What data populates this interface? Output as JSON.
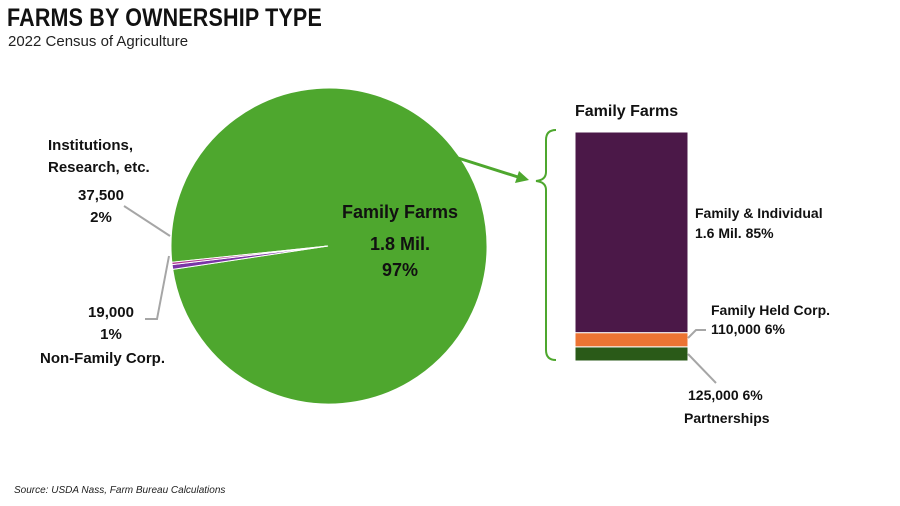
{
  "title": "FARMS BY OWNERSHIP TYPE",
  "subtitle": "2022 Census of Agriculture",
  "source": "Source: USDA Nass, Farm Bureau Calculations",
  "chart_data": [
    {
      "type": "pie",
      "slices": [
        {
          "name": "Family Farms",
          "value_label": "1.8 Mil.",
          "percent_label": "97%",
          "percent": 97,
          "color": "#4ea72e"
        },
        {
          "name_lines": [
            "Institutions,",
            "Research, etc."
          ],
          "value_label": "37,500",
          "percent_label": "2%",
          "percent": 2,
          "color": "#7a35a6"
        },
        {
          "name_lines": [
            "Non-Family Corp."
          ],
          "value_label": "19,000",
          "percent_label": "1%",
          "percent": 1,
          "color": "#b0338e"
        }
      ]
    },
    {
      "type": "bar",
      "stacked": true,
      "title": "Family Farms",
      "segments": [
        {
          "name": "Family & Individual",
          "detail": "1.6 Mil. 85%",
          "percent": 85,
          "color": "#4b1848"
        },
        {
          "name": "Family Held Corp.",
          "detail": "110,000 6%",
          "percent": 6,
          "color": "#ec7433"
        },
        {
          "name": "Partnerships",
          "detail": "125,000 6%",
          "percent": 6,
          "color": "#2a5a18"
        }
      ]
    }
  ],
  "colors": {
    "accent_green": "#4ea72e",
    "leader_gray": "#a6a6a6"
  }
}
